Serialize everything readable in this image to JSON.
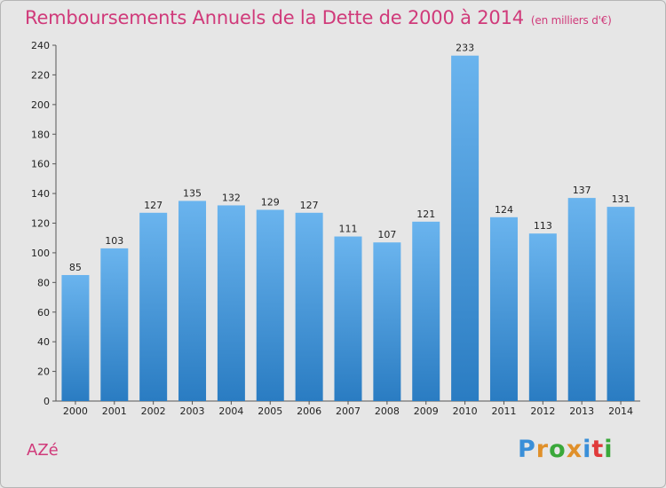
{
  "header": {
    "title": "Remboursements Annuels de la Dette de 2000 à 2014",
    "subtitle": "(en milliers d'€)"
  },
  "footer": {
    "commune": "AZé",
    "logo_text": "Proxiti"
  },
  "colors": {
    "title": "#d03a7a",
    "bar_top": "#6ab4ee",
    "bar_bottom": "#2a7cc2",
    "logo": [
      "#3a8fd8",
      "#e0902a",
      "#3aa83a",
      "#e0902a",
      "#3a8fd8",
      "#e03a3a",
      "#3aa83a"
    ]
  },
  "chart_data": {
    "type": "bar",
    "title": "Remboursements Annuels de la Dette de 2000 à 2014",
    "subtitle": "(en milliers d'€)",
    "xlabel": "",
    "ylabel": "",
    "categories": [
      "2000",
      "2001",
      "2002",
      "2003",
      "2004",
      "2005",
      "2006",
      "2007",
      "2008",
      "2009",
      "2010",
      "2011",
      "2012",
      "2013",
      "2014"
    ],
    "values": [
      85,
      103,
      127,
      135,
      132,
      129,
      127,
      111,
      107,
      121,
      233,
      124,
      113,
      137,
      131
    ],
    "ylim": [
      0,
      240
    ],
    "yticks": [
      0,
      20,
      40,
      60,
      80,
      100,
      120,
      140,
      160,
      180,
      200,
      220,
      240
    ],
    "grid": false,
    "data_labels": true
  }
}
